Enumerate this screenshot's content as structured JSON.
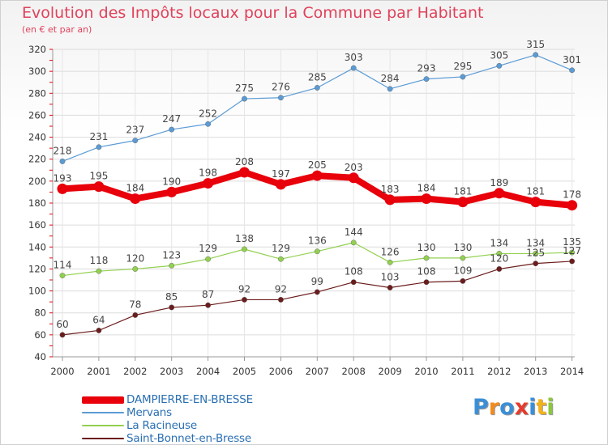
{
  "title": "Evolution des Impôts locaux pour la Commune par Habitant",
  "subtitle": "(en € et par an)",
  "logo": {
    "text": "Proxiti",
    "letter_colors": [
      "#3b8fd6",
      "#f28c1e",
      "#3b8fd6",
      "#e53c2e",
      "#3b8fd6",
      "#f2b21e",
      "#8cc63f"
    ]
  },
  "chart_data": {
    "type": "line",
    "x": [
      "2000",
      "2001",
      "2002",
      "2003",
      "2004",
      "2005",
      "2006",
      "2007",
      "2008",
      "2009",
      "2010",
      "2011",
      "2012",
      "2013",
      "2014"
    ],
    "yticks": [
      40,
      60,
      80,
      100,
      120,
      140,
      160,
      180,
      200,
      220,
      240,
      260,
      280,
      300,
      320
    ],
    "ylim": [
      40,
      320
    ],
    "grid": true,
    "legend_position": "bottom-left",
    "series": [
      {
        "name": "DAMPIERRE-EN-BRESSE",
        "color": "#e8000b",
        "emphasis": true,
        "values": [
          193,
          195,
          184,
          190,
          198,
          208,
          197,
          205,
          203,
          183,
          184,
          181,
          189,
          181,
          178
        ]
      },
      {
        "name": "Mervans",
        "color": "#5b9bd5",
        "emphasis": false,
        "values": [
          218,
          231,
          237,
          247,
          252,
          275,
          276,
          285,
          303,
          284,
          293,
          295,
          305,
          315,
          301
        ]
      },
      {
        "name": "La Racineuse",
        "color": "#92d050",
        "emphasis": false,
        "values": [
          114,
          118,
          120,
          123,
          129,
          138,
          129,
          136,
          144,
          126,
          130,
          130,
          134,
          134,
          135
        ]
      },
      {
        "name": "Saint-Bonnet-en-Bresse",
        "color": "#6b1c1c",
        "emphasis": false,
        "values": [
          60,
          64,
          78,
          85,
          87,
          92,
          92,
          99,
          108,
          103,
          108,
          109,
          120,
          125,
          127
        ]
      }
    ]
  }
}
